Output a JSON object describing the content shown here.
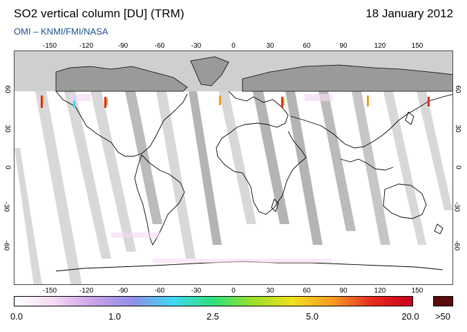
{
  "header": {
    "title": "SO2 vertical column [DU] (TRM)",
    "date": "18 January 2012",
    "source": "OMI  –  KNMI/FMI/NASA"
  },
  "map": {
    "lon_ticks": [
      "-150",
      "-120",
      "-90",
      "-60",
      "-30",
      "0",
      "30",
      "60",
      "90",
      "120",
      "150"
    ],
    "lat_ticks": [
      "60",
      "30",
      "0",
      "-30",
      "-60"
    ],
    "colors": {
      "polar_night": "#cfcfcf",
      "land_dark": "#9a9a9a",
      "gap_band": "#d6d6d6",
      "gap_band_dark": "#b0b0b0",
      "coast": "#000000"
    }
  },
  "colorbar": {
    "labels": [
      "0.0",
      "1.0",
      "2.5",
      "5.0",
      "20.0",
      ">50"
    ],
    "gradient": [
      "#ffffff",
      "#f4d8f4",
      "#c9a0e8",
      "#8f8fe8",
      "#3fd9f0",
      "#2fe07c",
      "#9be02a",
      "#f0e020",
      "#f59a20",
      "#e82a20",
      "#c8001a"
    ],
    "over_color": "#5c0a0a"
  }
}
